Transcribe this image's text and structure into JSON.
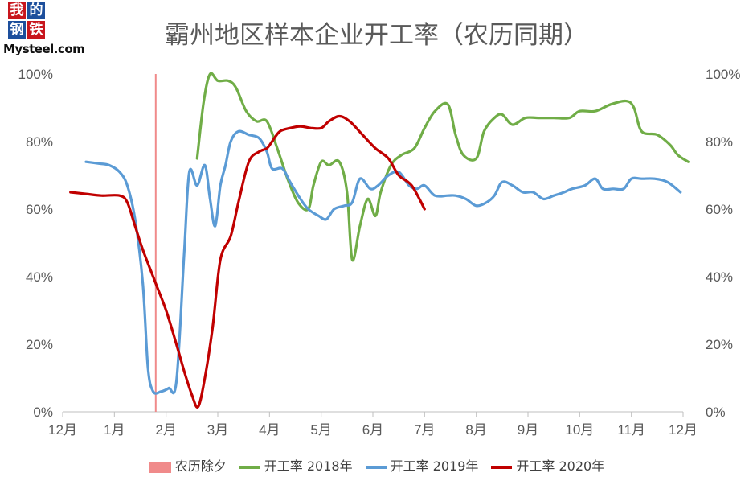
{
  "logo": {
    "glyphs": [
      "我",
      "的",
      "钢",
      "铁"
    ],
    "brand": "Mysteel.com"
  },
  "title": "霸州地区样本企业开工率（农历同期）",
  "legend": [
    {
      "label": "农历除夕",
      "color": "#f08a8a",
      "kind": "box"
    },
    {
      "label": "开工率 2018年",
      "color": "#70ad47",
      "kind": "line"
    },
    {
      "label": "开工率 2019年",
      "color": "#5b9bd5",
      "kind": "line"
    },
    {
      "label": "开工率 2020年",
      "color": "#c00000",
      "kind": "line"
    }
  ],
  "chart_data": {
    "type": "line",
    "title": "霸州地区样本企业开工率（农历同期）",
    "x_ticks": [
      "12月",
      "1月",
      "2月",
      "3月",
      "4月",
      "5月",
      "6月",
      "7月",
      "8月",
      "9月",
      "10月",
      "11月",
      "12月"
    ],
    "x_range": [
      0,
      12
    ],
    "x_unit_note": "months after December, lunar-aligned",
    "y_ticks_left": [
      "0%",
      "20%",
      "40%",
      "60%",
      "80%",
      "100%"
    ],
    "y_ticks_right": [
      "0%",
      "20%",
      "40%",
      "60%",
      "80%",
      "100%"
    ],
    "ylim": [
      0,
      100
    ],
    "grid": false,
    "legend_position": "bottom",
    "marker_line": {
      "name": "农历除夕",
      "x": 1.8,
      "color": "#f08a8a"
    },
    "series": [
      {
        "name": "开工率 2018年",
        "color": "#70ad47",
        "points": [
          [
            2.6,
            75
          ],
          [
            2.73,
            92
          ],
          [
            2.85,
            100
          ],
          [
            3.0,
            98
          ],
          [
            3.2,
            98
          ],
          [
            3.35,
            96
          ],
          [
            3.55,
            89
          ],
          [
            3.75,
            86
          ],
          [
            3.95,
            86
          ],
          [
            4.15,
            78
          ],
          [
            4.35,
            69
          ],
          [
            4.55,
            62
          ],
          [
            4.75,
            60
          ],
          [
            4.85,
            67
          ],
          [
            5.0,
            74
          ],
          [
            5.15,
            73
          ],
          [
            5.35,
            74
          ],
          [
            5.5,
            65
          ],
          [
            5.6,
            45
          ],
          [
            5.75,
            55
          ],
          [
            5.9,
            63
          ],
          [
            6.05,
            58
          ],
          [
            6.15,
            65
          ],
          [
            6.35,
            73
          ],
          [
            6.55,
            76
          ],
          [
            6.8,
            78
          ],
          [
            7.0,
            84
          ],
          [
            7.2,
            89
          ],
          [
            7.45,
            91
          ],
          [
            7.6,
            82
          ],
          [
            7.75,
            76
          ],
          [
            8.0,
            75
          ],
          [
            8.15,
            83
          ],
          [
            8.35,
            87
          ],
          [
            8.5,
            88
          ],
          [
            8.7,
            85
          ],
          [
            8.95,
            87
          ],
          [
            9.2,
            87
          ],
          [
            9.5,
            87
          ],
          [
            9.8,
            87
          ],
          [
            10.0,
            89
          ],
          [
            10.3,
            89
          ],
          [
            10.6,
            91
          ],
          [
            10.9,
            92
          ],
          [
            11.05,
            90
          ],
          [
            11.2,
            83
          ],
          [
            11.5,
            82
          ],
          [
            11.75,
            79
          ],
          [
            11.9,
            76
          ],
          [
            12.1,
            74
          ]
        ]
      },
      {
        "name": "开工率 2019年",
        "color": "#5b9bd5",
        "points": [
          [
            0.45,
            74
          ],
          [
            0.7,
            73.5
          ],
          [
            0.9,
            73
          ],
          [
            1.1,
            71
          ],
          [
            1.25,
            67
          ],
          [
            1.4,
            57
          ],
          [
            1.55,
            38
          ],
          [
            1.65,
            13
          ],
          [
            1.75,
            6
          ],
          [
            1.9,
            6
          ],
          [
            2.05,
            7
          ],
          [
            2.2,
            9
          ],
          [
            2.35,
            47
          ],
          [
            2.45,
            71
          ],
          [
            2.6,
            67
          ],
          [
            2.75,
            73
          ],
          [
            2.85,
            63
          ],
          [
            2.95,
            55
          ],
          [
            3.05,
            67
          ],
          [
            3.15,
            73
          ],
          [
            3.25,
            80
          ],
          [
            3.4,
            83
          ],
          [
            3.6,
            82
          ],
          [
            3.8,
            81
          ],
          [
            3.95,
            77
          ],
          [
            4.05,
            72
          ],
          [
            4.25,
            72
          ],
          [
            4.4,
            68
          ],
          [
            4.6,
            63
          ],
          [
            4.75,
            60
          ],
          [
            4.95,
            58
          ],
          [
            5.1,
            57
          ],
          [
            5.25,
            60
          ],
          [
            5.45,
            61
          ],
          [
            5.6,
            62
          ],
          [
            5.75,
            69
          ],
          [
            5.95,
            66
          ],
          [
            6.1,
            67
          ],
          [
            6.3,
            70
          ],
          [
            6.5,
            71
          ],
          [
            6.7,
            67
          ],
          [
            6.85,
            66
          ],
          [
            7.0,
            67
          ],
          [
            7.2,
            64
          ],
          [
            7.45,
            64
          ],
          [
            7.6,
            64
          ],
          [
            7.8,
            63
          ],
          [
            8.0,
            61
          ],
          [
            8.2,
            62
          ],
          [
            8.35,
            64
          ],
          [
            8.5,
            68
          ],
          [
            8.7,
            67
          ],
          [
            8.9,
            65
          ],
          [
            9.1,
            65
          ],
          [
            9.3,
            63
          ],
          [
            9.5,
            64
          ],
          [
            9.7,
            65
          ],
          [
            9.85,
            66
          ],
          [
            10.1,
            67
          ],
          [
            10.3,
            69
          ],
          [
            10.45,
            66
          ],
          [
            10.65,
            66
          ],
          [
            10.85,
            66
          ],
          [
            11.0,
            69
          ],
          [
            11.2,
            69
          ],
          [
            11.45,
            69
          ],
          [
            11.7,
            68
          ],
          [
            11.95,
            65
          ]
        ]
      },
      {
        "name": "开工率 2020年",
        "color": "#c00000",
        "points": [
          [
            0.15,
            65
          ],
          [
            0.45,
            64.5
          ],
          [
            0.75,
            64
          ],
          [
            1.1,
            64
          ],
          [
            1.25,
            62
          ],
          [
            1.4,
            55
          ],
          [
            1.55,
            48
          ],
          [
            1.8,
            38
          ],
          [
            2.0,
            30
          ],
          [
            2.2,
            20
          ],
          [
            2.35,
            12
          ],
          [
            2.5,
            5
          ],
          [
            2.62,
            1.5
          ],
          [
            2.75,
            10
          ],
          [
            2.9,
            25
          ],
          [
            3.05,
            45
          ],
          [
            3.25,
            52
          ],
          [
            3.4,
            62
          ],
          [
            3.6,
            74
          ],
          [
            3.8,
            77
          ],
          [
            3.95,
            78
          ],
          [
            4.05,
            80
          ],
          [
            4.2,
            83
          ],
          [
            4.4,
            84
          ],
          [
            4.6,
            84.5
          ],
          [
            4.8,
            84
          ],
          [
            5.0,
            84
          ],
          [
            5.15,
            86
          ],
          [
            5.35,
            87.5
          ],
          [
            5.55,
            86
          ],
          [
            5.8,
            82
          ],
          [
            6.05,
            78
          ],
          [
            6.3,
            75
          ],
          [
            6.5,
            70
          ],
          [
            6.75,
            67
          ],
          [
            7.0,
            60
          ]
        ]
      }
    ]
  }
}
